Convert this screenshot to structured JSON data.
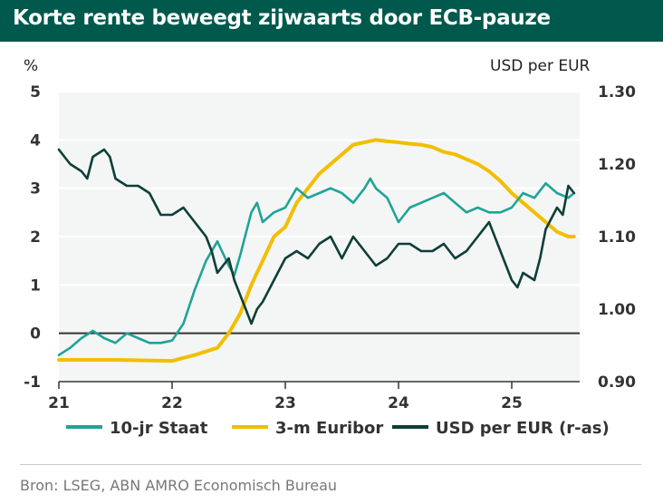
{
  "title": "Korte rente beweegt zijwaarts door ECB-pauze",
  "source": "Bron: LSEG, ABN AMRO Economisch Bureau",
  "colors": {
    "staat": "#1FA497",
    "euribor": "#F2BE00",
    "usd": "#0D3F37",
    "axis": "#333333"
  },
  "chart_data": {
    "type": "line",
    "title": "Korte rente beweegt zijwaarts door ECB-pauze",
    "y_left_label": "%",
    "y_right_label": "USD per EUR",
    "ylim_left": [
      -1,
      5
    ],
    "ylim_right": [
      0.9,
      1.3
    ],
    "yticks_left": [
      "-1",
      "0",
      "1",
      "2",
      "3",
      "4",
      "5"
    ],
    "yticks_right": [
      "0.90",
      "1.00",
      "1.10",
      "1.20",
      "1.30"
    ],
    "xlim": [
      2021,
      2025.6
    ],
    "xticks": [
      "21",
      "22",
      "23",
      "24",
      "25"
    ],
    "series": [
      {
        "name": "10-jr Staat",
        "axis": "left",
        "x": [
          2021.0,
          2021.1,
          2021.2,
          2021.3,
          2021.4,
          2021.5,
          2021.6,
          2021.7,
          2021.8,
          2021.9,
          2022.0,
          2022.1,
          2022.2,
          2022.3,
          2022.4,
          2022.5,
          2022.55,
          2022.6,
          2022.7,
          2022.75,
          2022.8,
          2022.9,
          2023.0,
          2023.1,
          2023.2,
          2023.3,
          2023.4,
          2023.5,
          2023.6,
          2023.7,
          2023.75,
          2023.8,
          2023.9,
          2024.0,
          2024.1,
          2024.2,
          2024.3,
          2024.4,
          2024.5,
          2024.6,
          2024.7,
          2024.8,
          2024.9,
          2025.0,
          2025.1,
          2025.2,
          2025.3,
          2025.4,
          2025.5,
          2025.55
        ],
        "values": [
          -0.45,
          -0.3,
          -0.1,
          0.05,
          -0.1,
          -0.2,
          0.0,
          -0.1,
          -0.2,
          -0.2,
          -0.15,
          0.2,
          0.9,
          1.5,
          1.9,
          1.4,
          1.2,
          1.6,
          2.5,
          2.7,
          2.3,
          2.5,
          2.6,
          3.0,
          2.8,
          2.9,
          3.0,
          2.9,
          2.7,
          3.0,
          3.2,
          3.0,
          2.8,
          2.3,
          2.6,
          2.7,
          2.8,
          2.9,
          2.7,
          2.5,
          2.6,
          2.5,
          2.5,
          2.6,
          2.9,
          2.8,
          3.1,
          2.9,
          2.8,
          2.9
        ]
      },
      {
        "name": "3-m Euribor",
        "axis": "left",
        "x": [
          2021.0,
          2021.5,
          2022.0,
          2022.2,
          2022.4,
          2022.5,
          2022.6,
          2022.7,
          2022.8,
          2022.9,
          2023.0,
          2023.1,
          2023.2,
          2023.3,
          2023.4,
          2023.5,
          2023.6,
          2023.7,
          2023.8,
          2023.9,
          2024.0,
          2024.1,
          2024.2,
          2024.3,
          2024.4,
          2024.5,
          2024.6,
          2024.7,
          2024.8,
          2024.9,
          2025.0,
          2025.1,
          2025.2,
          2025.3,
          2025.4,
          2025.5,
          2025.55
        ],
        "values": [
          -0.55,
          -0.55,
          -0.57,
          -0.45,
          -0.3,
          0.0,
          0.4,
          1.0,
          1.5,
          2.0,
          2.2,
          2.7,
          3.0,
          3.3,
          3.5,
          3.7,
          3.9,
          3.95,
          4.0,
          3.97,
          3.95,
          3.92,
          3.9,
          3.85,
          3.75,
          3.7,
          3.6,
          3.5,
          3.35,
          3.15,
          2.9,
          2.7,
          2.5,
          2.3,
          2.1,
          2.0,
          2.0
        ]
      },
      {
        "name": "USD per EUR (r-as)",
        "axis": "right",
        "x": [
          2021.0,
          2021.05,
          2021.1,
          2021.2,
          2021.25,
          2021.3,
          2021.4,
          2021.45,
          2021.5,
          2021.6,
          2021.7,
          2021.8,
          2021.9,
          2022.0,
          2022.1,
          2022.2,
          2022.3,
          2022.35,
          2022.4,
          2022.5,
          2022.55,
          2022.6,
          2022.65,
          2022.7,
          2022.75,
          2022.8,
          2022.9,
          2023.0,
          2023.1,
          2023.2,
          2023.3,
          2023.4,
          2023.5,
          2023.6,
          2023.7,
          2023.8,
          2023.9,
          2024.0,
          2024.1,
          2024.2,
          2024.3,
          2024.4,
          2024.5,
          2024.6,
          2024.7,
          2024.8,
          2024.9,
          2025.0,
          2025.05,
          2025.1,
          2025.2,
          2025.25,
          2025.3,
          2025.4,
          2025.45,
          2025.5,
          2025.55
        ],
        "values": [
          1.22,
          1.21,
          1.2,
          1.19,
          1.18,
          1.21,
          1.22,
          1.21,
          1.18,
          1.17,
          1.17,
          1.16,
          1.13,
          1.13,
          1.14,
          1.12,
          1.1,
          1.08,
          1.05,
          1.07,
          1.04,
          1.02,
          1.0,
          0.98,
          1.0,
          1.01,
          1.04,
          1.07,
          1.08,
          1.07,
          1.09,
          1.1,
          1.07,
          1.1,
          1.08,
          1.06,
          1.07,
          1.09,
          1.09,
          1.08,
          1.08,
          1.09,
          1.07,
          1.08,
          1.1,
          1.12,
          1.08,
          1.04,
          1.03,
          1.05,
          1.04,
          1.07,
          1.11,
          1.14,
          1.13,
          1.17,
          1.16
        ]
      }
    ]
  }
}
